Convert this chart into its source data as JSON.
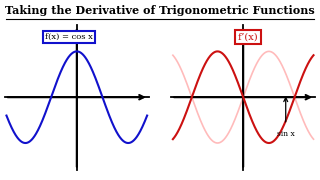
{
  "title": "Taking the Derivative of Trigonometric Functions",
  "title_fontsize": 8.0,
  "background_color": "#ffffff",
  "left_label": "f(x) = cos x",
  "right_label": "f’(x)",
  "left_box_color": "#1111cc",
  "right_box_color": "#cc1111",
  "annotation": "sin x",
  "cos_color": "#1111cc",
  "neg_sin_color": "#cc1111",
  "sin_faded_color": "#ffbbbb"
}
